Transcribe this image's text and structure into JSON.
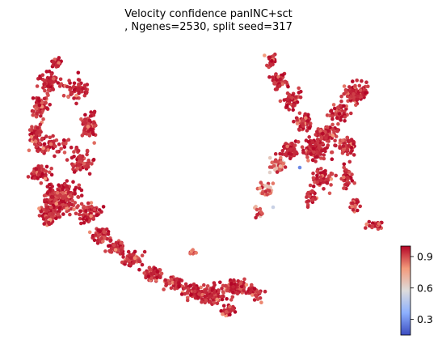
{
  "chart_data": {
    "type": "scatter",
    "title": "Velocity confidence panINC+sct",
    "subtitle": ", Ngenes=2530, split seed=317",
    "xlabel": "",
    "ylabel": "",
    "axes_visible": false,
    "colormap": "coolwarm",
    "colorbar": {
      "range": [
        0.15,
        1.0
      ],
      "ticks": [
        0.3,
        0.6,
        0.9
      ],
      "tick_labels": [
        "0.3",
        "0.6",
        "0.9"
      ],
      "placement": "bottom-right"
    },
    "colors": {
      "low": "#3b4cc0",
      "mid": "#dddddd",
      "high": "#b40426"
    },
    "point_count_note": "approximately 2500 cells; majority with confidence 0.85-1.0, a few light/low-confidence cells near the left edge of the right cluster"
  }
}
